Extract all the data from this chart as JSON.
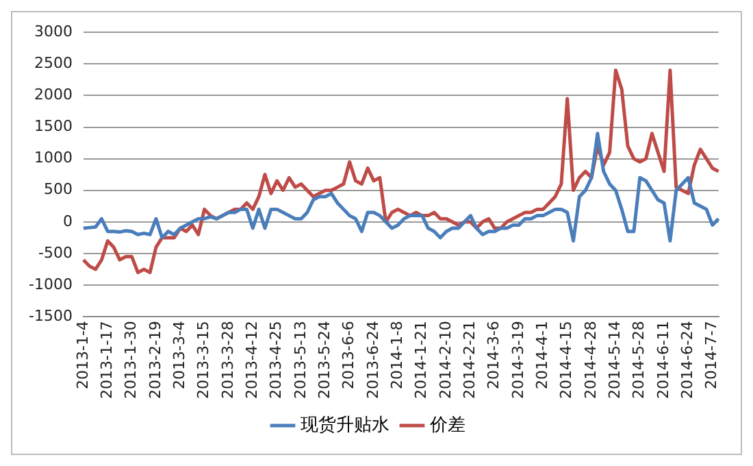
{
  "chart_data": {
    "type": "line",
    "categories": [
      "2013-1-4",
      null,
      null,
      null,
      "2013-1-17",
      null,
      null,
      null,
      "2013-1-30",
      null,
      null,
      null,
      "2013-2-19",
      null,
      null,
      null,
      "2013-3-4",
      null,
      null,
      null,
      "2013-3-15",
      null,
      null,
      null,
      "2013-3-28",
      null,
      null,
      null,
      "2013-4-12",
      null,
      null,
      null,
      "2013-4-25",
      null,
      null,
      null,
      "2013-5-13",
      null,
      null,
      null,
      "2013-5-24",
      null,
      null,
      null,
      "2013-6-6",
      null,
      null,
      null,
      "2013-6-24",
      null,
      null,
      null,
      "2014-1-8",
      null,
      null,
      null,
      "2014-1-21",
      null,
      null,
      null,
      "2014-2-10",
      null,
      null,
      null,
      "2014-2-21",
      null,
      null,
      null,
      "2014-3-6",
      null,
      null,
      null,
      "2014-3-19",
      null,
      null,
      null,
      "2014-4-1",
      null,
      null,
      null,
      "2014-4-15",
      null,
      null,
      null,
      "2014-4-28",
      null,
      null,
      null,
      "2014-5-14",
      null,
      null,
      null,
      "2014-5-28",
      null,
      null,
      null,
      "2014-6-11",
      null,
      null,
      null,
      "2014-6-24",
      null,
      null,
      null,
      "2014-7-7",
      null
    ],
    "series": [
      {
        "name": "现货升贴水",
        "color": "#4a7ebb",
        "values": [
          -100,
          -90,
          -80,
          50,
          -150,
          -150,
          -160,
          -140,
          -150,
          -200,
          -180,
          -200,
          50,
          -250,
          -150,
          -200,
          -100,
          -50,
          0,
          50,
          50,
          80,
          50,
          100,
          150,
          150,
          200,
          200,
          -100,
          200,
          -100,
          200,
          200,
          150,
          100,
          50,
          50,
          150,
          350,
          400,
          400,
          450,
          300,
          200,
          100,
          50,
          -150,
          150,
          150,
          100,
          0,
          -100,
          -50,
          50,
          100,
          100,
          100,
          -100,
          -150,
          -250,
          -150,
          -100,
          -100,
          0,
          100,
          -100,
          -200,
          -150,
          -150,
          -100,
          -100,
          -50,
          -50,
          50,
          50,
          100,
          100,
          150,
          200,
          200,
          150,
          -300,
          400,
          500,
          700,
          1400,
          800,
          600,
          500,
          200,
          -150,
          -150,
          700,
          650,
          500,
          350,
          300,
          -300,
          500,
          600,
          700,
          300,
          250,
          200,
          -50,
          50
        ]
      },
      {
        "name": "价差",
        "color": "#be4b48",
        "values": [
          -600,
          -700,
          -750,
          -600,
          -300,
          -400,
          -600,
          -550,
          -550,
          -800,
          -750,
          -800,
          -400,
          -250,
          -250,
          -250,
          -100,
          -150,
          -50,
          -200,
          200,
          100,
          50,
          100,
          150,
          200,
          200,
          300,
          200,
          400,
          750,
          450,
          650,
          500,
          700,
          550,
          600,
          500,
          400,
          450,
          500,
          500,
          550,
          600,
          950,
          650,
          600,
          850,
          650,
          700,
          0,
          150,
          200,
          150,
          100,
          150,
          100,
          100,
          150,
          50,
          50,
          0,
          -50,
          0,
          0,
          -100,
          0,
          50,
          -100,
          -100,
          0,
          50,
          100,
          150,
          150,
          200,
          200,
          300,
          400,
          600,
          1950,
          500,
          700,
          800,
          700,
          1200,
          900,
          1100,
          2400,
          2100,
          1200,
          1000,
          950,
          1000,
          1400,
          1100,
          800,
          2400,
          550,
          500,
          450,
          900,
          1150,
          1000,
          850,
          800
        ]
      }
    ],
    "ylim": [
      -1500,
      3000
    ],
    "yticks": [
      -1500,
      -1000,
      -500,
      0,
      500,
      1000,
      1500,
      2000,
      2500,
      3000
    ],
    "grid": "y",
    "legend": "bottom",
    "marker": "none",
    "line_style": "solid"
  }
}
